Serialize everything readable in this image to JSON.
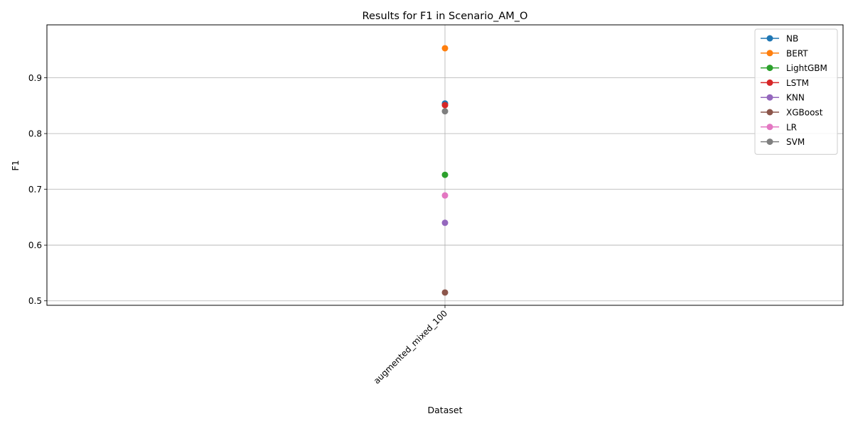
{
  "chart_data": {
    "type": "line",
    "title": "Results for F1 in Scenario_AM_O",
    "xlabel": "Dataset",
    "ylabel": "F1",
    "categories": [
      "augmented_mixed_100"
    ],
    "ylim": [
      0.492,
      0.995
    ],
    "yticks": [
      0.5,
      0.6,
      0.7,
      0.8,
      0.9
    ],
    "ytick_labels": [
      "0.5",
      "0.6",
      "0.7",
      "0.8",
      "0.9"
    ],
    "grid": true,
    "legend_position": "top-right",
    "series": [
      {
        "name": "NB",
        "color": "#1f77b4",
        "values": [
          0.854
        ]
      },
      {
        "name": "BERT",
        "color": "#ff7f0e",
        "values": [
          0.953
        ]
      },
      {
        "name": "LightGBM",
        "color": "#2ca02c",
        "values": [
          0.726
        ]
      },
      {
        "name": "LSTM",
        "color": "#d62728",
        "values": [
          0.851
        ]
      },
      {
        "name": "KNN",
        "color": "#9467bd",
        "values": [
          0.64
        ]
      },
      {
        "name": "XGBoost",
        "color": "#8c564b",
        "values": [
          0.515
        ]
      },
      {
        "name": "LR",
        "color": "#e377c2",
        "values": [
          0.689
        ]
      },
      {
        "name": "SVM",
        "color": "#7f7f7f",
        "values": [
          0.84
        ]
      }
    ]
  }
}
